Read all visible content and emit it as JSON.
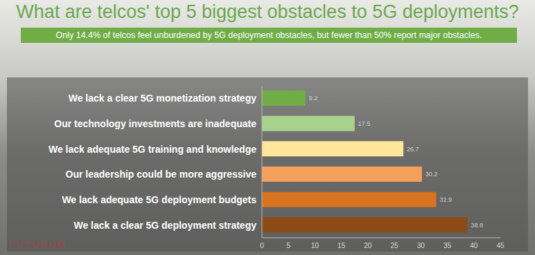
{
  "chart_data": {
    "type": "bar",
    "title": "What are telcos' top 5 biggest obstacles to 5G deployments?",
    "subtitle": "Only 14.4% of telcos feel unburdened by 5G deployment obstacles, but fewer than 50% report major obstacles.",
    "categories": [
      "We lack a clear 5G monetization strategy",
      "Our technology investments are inadequate",
      "We lack adequate 5G training and knowledge",
      "Our leadership could be more aggressive",
      "We lack adequate 5G deployment budgets",
      "We lack a clear 5G deployment strategy"
    ],
    "values": [
      8.2,
      17.5,
      26.7,
      30.2,
      32.9,
      38.8
    ],
    "colors": [
      "#70ad47",
      "#a9d18e",
      "#ffe699",
      "#f4a05a",
      "#d9731f",
      "#8c4a17"
    ],
    "xlim": [
      0,
      45
    ],
    "xticks": [
      0,
      5,
      10,
      15,
      20,
      25,
      30,
      35,
      40,
      45
    ],
    "orientation": "horizontal",
    "data_labels": true,
    "grid": false,
    "annotations": [
      "FUTURUM"
    ]
  }
}
